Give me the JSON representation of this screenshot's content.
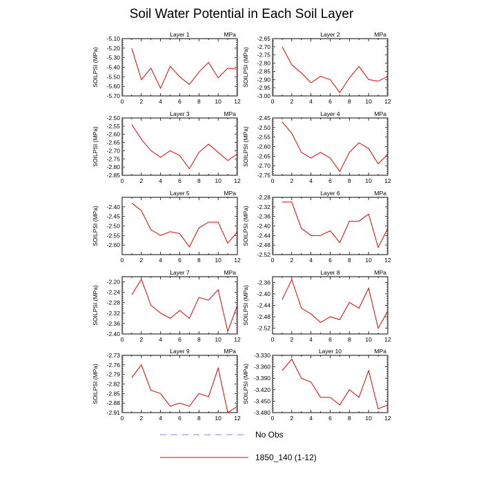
{
  "figure": {
    "title": "Soil Water Potential in Each Soil Layer",
    "legend": [
      {
        "label": "No Obs",
        "color": "#8080e0",
        "dash": true
      },
      {
        "label": "1850_140 (1-12)",
        "color": "#e00000",
        "dash": false
      }
    ]
  },
  "colors": {
    "series": "#e00000",
    "obs": "#8080e0",
    "axis": "#000000"
  },
  "chart_data": [
    {
      "type": "line",
      "title": "Layer 1",
      "unit": "MPa",
      "ylabel": "SOILPSI  (MPa)",
      "x": [
        1,
        2,
        3,
        4,
        5,
        6,
        7,
        8,
        9,
        10,
        11,
        12
      ],
      "xlim": [
        0,
        12
      ],
      "xticks": [
        0,
        2,
        4,
        6,
        8,
        10,
        12
      ],
      "ylim": [
        -5.7,
        -5.1
      ],
      "yticks": [
        "-5.10",
        "-5.20",
        "-5.30",
        "-5.40",
        "-5.50",
        "-5.60",
        "-5.70"
      ],
      "series": [
        {
          "name": "1850_140 (1-12)",
          "values": [
            -5.2,
            -5.53,
            -5.41,
            -5.62,
            -5.39,
            -5.5,
            -5.58,
            -5.45,
            -5.35,
            -5.51,
            -5.41,
            -5.42
          ]
        }
      ]
    },
    {
      "type": "line",
      "title": "Layer 2",
      "unit": "MPa",
      "ylabel": "SOILPSI  (MPa)",
      "x": [
        1,
        2,
        3,
        4,
        5,
        6,
        7,
        8,
        9,
        10,
        11,
        12
      ],
      "xlim": [
        0,
        12
      ],
      "xticks": [
        0,
        2,
        4,
        6,
        8,
        10,
        12
      ],
      "ylim": [
        -3.0,
        -2.65
      ],
      "yticks": [
        "-2.65",
        "-2.70",
        "-2.75",
        "-2.80",
        "-2.85",
        "-2.90",
        "-2.95",
        "-3.00"
      ],
      "series": [
        {
          "name": "1850_140 (1-12)",
          "values": [
            -2.7,
            -2.81,
            -2.86,
            -2.92,
            -2.88,
            -2.9,
            -2.98,
            -2.89,
            -2.82,
            -2.9,
            -2.91,
            -2.88
          ]
        }
      ]
    },
    {
      "type": "line",
      "title": "Layer 3",
      "unit": "MPa",
      "ylabel": "SOILPSI  (MPa)",
      "x": [
        1,
        2,
        3,
        4,
        5,
        6,
        7,
        8,
        9,
        10,
        11,
        12
      ],
      "xlim": [
        0,
        12
      ],
      "xticks": [
        0,
        2,
        4,
        6,
        8,
        10,
        12
      ],
      "ylim": [
        -2.85,
        -2.5
      ],
      "yticks": [
        "-2.50",
        "-2.55",
        "-2.60",
        "-2.65",
        "-2.70",
        "-2.75",
        "-2.80",
        "-2.85"
      ],
      "series": [
        {
          "name": "1850_140 (1-12)",
          "values": [
            -2.54,
            -2.63,
            -2.7,
            -2.74,
            -2.7,
            -2.73,
            -2.81,
            -2.71,
            -2.66,
            -2.71,
            -2.76,
            -2.72
          ]
        }
      ]
    },
    {
      "type": "line",
      "title": "Layer 4",
      "unit": "MPa",
      "ylabel": "SOILPSI  (MPa)",
      "x": [
        1,
        2,
        3,
        4,
        5,
        6,
        7,
        8,
        9,
        10,
        11,
        12
      ],
      "xlim": [
        0,
        12
      ],
      "xticks": [
        0,
        2,
        4,
        6,
        8,
        10,
        12
      ],
      "ylim": [
        -2.75,
        -2.45
      ],
      "yticks": [
        "-2.45",
        "-2.50",
        "-2.55",
        "-2.60",
        "-2.65",
        "-2.70",
        "-2.75"
      ],
      "series": [
        {
          "name": "1850_140 (1-12)",
          "values": [
            -2.47,
            -2.53,
            -2.63,
            -2.66,
            -2.63,
            -2.66,
            -2.73,
            -2.63,
            -2.58,
            -2.61,
            -2.69,
            -2.64
          ]
        }
      ]
    },
    {
      "type": "line",
      "title": "Layer 5",
      "unit": "MPa",
      "ylabel": "SOILPSI  (MPa)",
      "x": [
        1,
        2,
        3,
        4,
        5,
        6,
        7,
        8,
        9,
        10,
        11,
        12
      ],
      "xlim": [
        0,
        12
      ],
      "xticks": [
        0,
        2,
        4,
        6,
        8,
        10,
        12
      ],
      "ylim": [
        -2.65,
        -2.35
      ],
      "yticks": [
        "-2.40",
        "-2.45",
        "-2.50",
        "-2.55",
        "-2.60"
      ],
      "series": [
        {
          "name": "1850_140 (1-12)",
          "values": [
            -2.38,
            -2.42,
            -2.52,
            -2.55,
            -2.53,
            -2.54,
            -2.61,
            -2.51,
            -2.48,
            -2.48,
            -2.59,
            -2.53
          ]
        }
      ]
    },
    {
      "type": "line",
      "title": "Layer 6",
      "unit": "MPa",
      "ylabel": "SOILPSI  (MPa)",
      "x": [
        1,
        2,
        3,
        4,
        5,
        6,
        7,
        8,
        9,
        10,
        11,
        12
      ],
      "xlim": [
        0,
        12
      ],
      "xticks": [
        0,
        2,
        4,
        6,
        8,
        10,
        12
      ],
      "ylim": [
        -2.52,
        -2.28
      ],
      "yticks": [
        "-2.28",
        "-2.32",
        "-2.36",
        "-2.40",
        "-2.44",
        "-2.48",
        "-2.52"
      ],
      "series": [
        {
          "name": "1850_140 (1-12)",
          "values": [
            -2.3,
            -2.3,
            -2.41,
            -2.44,
            -2.44,
            -2.42,
            -2.47,
            -2.38,
            -2.38,
            -2.35,
            -2.49,
            -2.41
          ]
        }
      ]
    },
    {
      "type": "line",
      "title": "Layer 7",
      "unit": "MPa",
      "ylabel": "SOILPSI  (MPa)",
      "x": [
        1,
        2,
        3,
        4,
        5,
        6,
        7,
        8,
        9,
        10,
        11,
        12
      ],
      "xlim": [
        0,
        12
      ],
      "xticks": [
        0,
        2,
        4,
        6,
        8,
        10,
        12
      ],
      "ylim": [
        -2.4,
        -2.18
      ],
      "yticks": [
        "-2.20",
        "-2.24",
        "-2.28",
        "-2.32",
        "-2.36",
        "-2.40"
      ],
      "series": [
        {
          "name": "1850_140 (1-12)",
          "values": [
            -2.25,
            -2.19,
            -2.29,
            -2.32,
            -2.34,
            -2.31,
            -2.34,
            -2.26,
            -2.27,
            -2.23,
            -2.39,
            -2.29
          ]
        }
      ]
    },
    {
      "type": "line",
      "title": "Layer 8",
      "unit": "MPa",
      "ylabel": "SOILPSI  (MPa)",
      "x": [
        1,
        2,
        3,
        4,
        5,
        6,
        7,
        8,
        9,
        10,
        11,
        12
      ],
      "xlim": [
        0,
        12
      ],
      "xticks": [
        0,
        2,
        4,
        6,
        8,
        10,
        12
      ],
      "ylim": [
        -2.54,
        -2.34
      ],
      "yticks": [
        "-2.36",
        "-2.40",
        "-2.44",
        "-2.48",
        "-2.52"
      ],
      "series": [
        {
          "name": "1850_140 (1-12)",
          "values": [
            -2.42,
            -2.35,
            -2.45,
            -2.47,
            -2.5,
            -2.48,
            -2.49,
            -2.43,
            -2.45,
            -2.38,
            -2.52,
            -2.46
          ]
        }
      ]
    },
    {
      "type": "line",
      "title": "Layer 9",
      "unit": "MPa",
      "ylabel": "SOILPSI  (MPa)",
      "x": [
        1,
        2,
        3,
        4,
        5,
        6,
        7,
        8,
        9,
        10,
        11,
        12
      ],
      "xlim": [
        0,
        12
      ],
      "xticks": [
        0,
        2,
        4,
        6,
        8,
        10,
        12
      ],
      "ylim": [
        -2.91,
        -2.73
      ],
      "yticks": [
        "-2.73",
        "-2.76",
        "-2.79",
        "-2.82",
        "-2.85",
        "-2.88",
        "-2.91"
      ],
      "series": [
        {
          "name": "1850_140 (1-12)",
          "values": [
            -2.8,
            -2.76,
            -2.84,
            -2.85,
            -2.89,
            -2.88,
            -2.89,
            -2.85,
            -2.86,
            -2.77,
            -2.91,
            -2.89
          ]
        }
      ]
    },
    {
      "type": "line",
      "title": "Layer 10",
      "unit": "MPa",
      "ylabel": "SOILPSI  (MPa)",
      "x": [
        1,
        2,
        3,
        4,
        5,
        6,
        7,
        8,
        9,
        10,
        11,
        12
      ],
      "xlim": [
        0,
        12
      ],
      "xticks": [
        0,
        2,
        4,
        6,
        8,
        10,
        12
      ],
      "ylim": [
        -3.48,
        -3.33
      ],
      "yticks": [
        "-3.330",
        "-3.360",
        "-3.390",
        "-3.420",
        "-3.450",
        "-3.480"
      ],
      "series": [
        {
          "name": "1850_140 (1-12)",
          "values": [
            -3.37,
            -3.34,
            -3.39,
            -3.4,
            -3.44,
            -3.44,
            -3.46,
            -3.42,
            -3.44,
            -3.37,
            -3.47,
            -3.46
          ]
        }
      ]
    }
  ]
}
